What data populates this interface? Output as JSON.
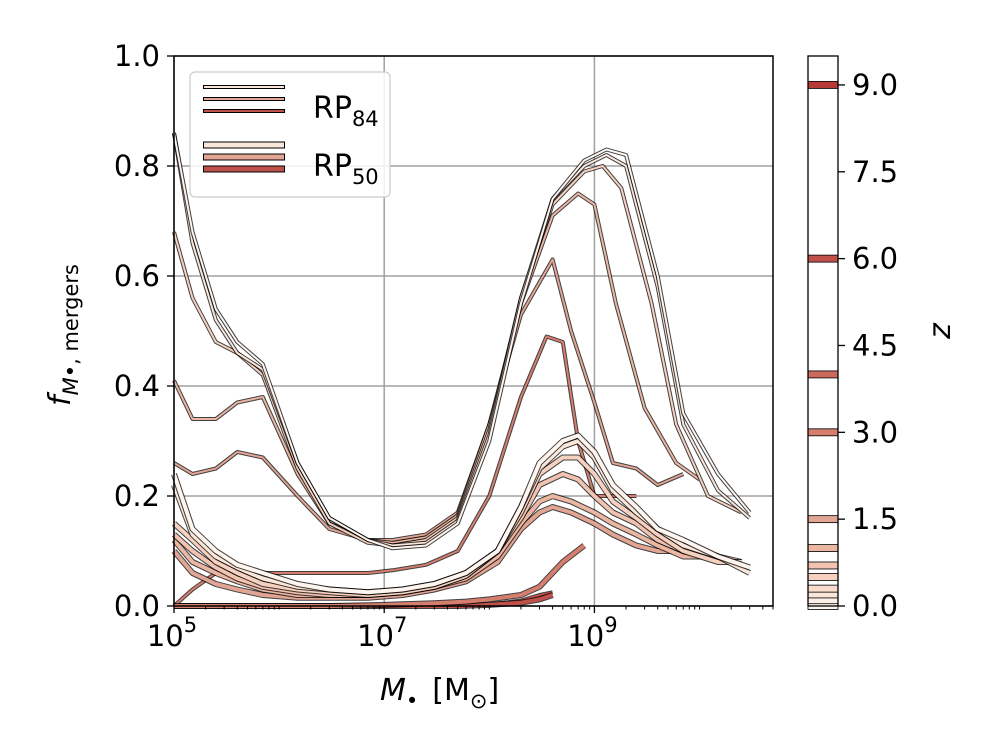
{
  "chart_data": {
    "type": "line",
    "xlabel": {
      "symbol": "M",
      "subscript": "•",
      "unit": "[M",
      "unit_sub": "⊙",
      "unit_close": "]"
    },
    "ylabel": {
      "symbol": "f",
      "sub_symbol": "M",
      "sub_bullet": "•",
      "sub_text": ", mergers"
    },
    "x_scale": "log",
    "xlim": [
      100000,
      50000000000
    ],
    "ylim": [
      0,
      1
    ],
    "grid": true,
    "x_ticks": [
      {
        "value": 100000,
        "base": "10",
        "exp": "5"
      },
      {
        "value": 10000000,
        "base": "10",
        "exp": "7"
      },
      {
        "value": 1000000000,
        "base": "10",
        "exp": "9"
      }
    ],
    "y_ticks": [
      {
        "value": 0.0,
        "label": "0.0"
      },
      {
        "value": 0.2,
        "label": "0.2"
      },
      {
        "value": 0.4,
        "label": "0.4"
      },
      {
        "value": 0.6,
        "label": "0.6"
      },
      {
        "value": 0.8,
        "label": "0.8"
      },
      {
        "value": 1.0,
        "label": "1.0"
      }
    ],
    "legend": {
      "placement": "top-left",
      "entries": [
        {
          "label": "RP",
          "sub": "84",
          "style": "thin",
          "colors": [
            "#fbe6da",
            "#e2a593",
            "#c0504a"
          ]
        },
        {
          "label": "RP",
          "sub": "50",
          "style": "thick",
          "colors": [
            "#fbe6da",
            "#e2a593",
            "#c0504a"
          ]
        }
      ]
    },
    "colorbar": {
      "label": "z",
      "range": [
        0,
        9.5
      ],
      "ticks": [
        {
          "value": 0.0,
          "label": "0.0"
        },
        {
          "value": 1.5,
          "label": "1.5"
        },
        {
          "value": 3.0,
          "label": "3.0"
        },
        {
          "value": 4.5,
          "label": "4.5"
        },
        {
          "value": 6.0,
          "label": "6.0"
        },
        {
          "value": 7.5,
          "label": "7.5"
        },
        {
          "value": 9.0,
          "label": "9.0"
        }
      ],
      "levels": [
        {
          "z": 0.0,
          "color": "#fff5ef"
        },
        {
          "z": 0.1,
          "color": "#fdeee6"
        },
        {
          "z": 0.2,
          "color": "#fbe6da"
        },
        {
          "z": 0.3,
          "color": "#f9dccd"
        },
        {
          "z": 0.5,
          "color": "#f6d1bf"
        },
        {
          "z": 0.7,
          "color": "#f1c3b0"
        },
        {
          "z": 1.0,
          "color": "#ebb6a2"
        },
        {
          "z": 1.5,
          "color": "#e2a593"
        },
        {
          "z": 3.0,
          "color": "#d57e6e"
        },
        {
          "z": 4.0,
          "color": "#cc6a5c"
        },
        {
          "z": 6.0,
          "color": "#c0504a"
        },
        {
          "z": 9.0,
          "color": "#b83a36"
        }
      ]
    },
    "series": [
      {
        "z": 0.0,
        "variant": "RP84",
        "x": [
          100000.0,
          150000.0,
          250000.0,
          400000.0,
          700000.0,
          1500000.0,
          3000000.0,
          7000000.0,
          12000000.0,
          25000000.0,
          50000000.0,
          100000000.0,
          200000000.0,
          400000000.0,
          800000000.0,
          1300000000.0,
          2000000000.0,
          4000000000.0,
          7000000000.0,
          15000000000.0,
          30000000000.0
        ],
        "y": [
          0.86,
          0.68,
          0.54,
          0.48,
          0.44,
          0.26,
          0.16,
          0.12,
          0.105,
          0.11,
          0.15,
          0.3,
          0.55,
          0.74,
          0.81,
          0.83,
          0.82,
          0.6,
          0.35,
          0.24,
          0.17
        ]
      },
      {
        "z": 0.2,
        "variant": "RP84",
        "x": [
          100000.0,
          150000.0,
          250000.0,
          400000.0,
          700000.0,
          1500000.0,
          3000000.0,
          7000000.0,
          12000000.0,
          25000000.0,
          50000000.0,
          100000000.0,
          200000000.0,
          400000000.0,
          800000000.0,
          1300000000.0,
          2000000000.0,
          4000000000.0,
          7000000000.0,
          15000000000.0,
          30000000000.0
        ],
        "y": [
          0.86,
          0.66,
          0.52,
          0.46,
          0.43,
          0.26,
          0.16,
          0.12,
          0.11,
          0.115,
          0.155,
          0.31,
          0.56,
          0.74,
          0.8,
          0.82,
          0.8,
          0.58,
          0.33,
          0.21,
          0.16
        ]
      },
      {
        "z": 0.5,
        "variant": "RP84",
        "x": [
          100000.0,
          150000.0,
          250000.0,
          400000.0,
          700000.0,
          1500000.0,
          3000000.0,
          7000000.0,
          12000000.0,
          25000000.0,
          50000000.0,
          100000000.0,
          200000000.0,
          400000000.0,
          800000000.0,
          1200000000.0,
          1800000000.0,
          3500000000.0,
          6000000000.0,
          12000000000.0,
          25000000000.0
        ],
        "y": [
          0.68,
          0.56,
          0.48,
          0.46,
          0.42,
          0.25,
          0.15,
          0.115,
          0.11,
          0.12,
          0.16,
          0.32,
          0.56,
          0.73,
          0.79,
          0.8,
          0.76,
          0.55,
          0.33,
          0.2,
          0.17
        ]
      },
      {
        "z": 1.0,
        "variant": "RP84",
        "x": [
          100000.0,
          150000.0,
          250000.0,
          400000.0,
          700000.0,
          1500000.0,
          3000000.0,
          7000000.0,
          12000000.0,
          25000000.0,
          50000000.0,
          100000000.0,
          200000000.0,
          400000000.0,
          700000000.0,
          1000000000.0,
          1600000000.0,
          3000000000.0,
          6000000000.0,
          10000000000.0
        ],
        "y": [
          0.41,
          0.34,
          0.34,
          0.37,
          0.38,
          0.24,
          0.15,
          0.12,
          0.115,
          0.125,
          0.165,
          0.33,
          0.55,
          0.71,
          0.75,
          0.73,
          0.55,
          0.36,
          0.26,
          0.23
        ]
      },
      {
        "z": 1.5,
        "variant": "RP84",
        "x": [
          100000.0,
          150000.0,
          250000.0,
          400000.0,
          700000.0,
          1500000.0,
          3000000.0,
          7000000.0,
          12000000.0,
          25000000.0,
          50000000.0,
          100000000.0,
          200000000.0,
          400000000.0,
          600000000.0,
          1000000000.0,
          1500000000.0,
          2500000000.0,
          4000000000.0,
          7000000000.0
        ],
        "y": [
          0.26,
          0.24,
          0.25,
          0.28,
          0.27,
          0.2,
          0.14,
          0.12,
          0.12,
          0.13,
          0.17,
          0.33,
          0.53,
          0.63,
          0.5,
          0.37,
          0.26,
          0.25,
          0.22,
          0.24
        ]
      },
      {
        "z": 3.0,
        "variant": "RP84",
        "x": [
          100000.0,
          150000.0,
          250000.0,
          400000.0,
          700000.0,
          1500000.0,
          3000000.0,
          7000000.0,
          12000000.0,
          25000000.0,
          50000000.0,
          100000000.0,
          200000000.0,
          350000000.0,
          500000000.0,
          700000000.0,
          1000000000.0,
          1500000000.0,
          2500000000.0
        ],
        "y": [
          0.0,
          0.03,
          0.06,
          0.06,
          0.06,
          0.06,
          0.06,
          0.06,
          0.065,
          0.075,
          0.1,
          0.2,
          0.38,
          0.49,
          0.48,
          0.3,
          0.2,
          0.2,
          0.2
        ]
      },
      {
        "z": 6.0,
        "variant": "RP84",
        "x": [
          100000.0,
          1000000.0,
          10000000.0,
          100000000.0,
          200000000.0,
          300000000.0,
          400000000.0
        ],
        "y": [
          0.0,
          0.0,
          0.0,
          0.002,
          0.01,
          0.02,
          0.025
        ]
      },
      {
        "z": 0.0,
        "variant": "RP50",
        "x": [
          100000.0,
          150000.0,
          250000.0,
          400000.0,
          700000.0,
          1500000.0,
          3000000.0,
          7000000.0,
          15000000.0,
          30000000.0,
          60000000.0,
          120000000.0,
          200000000.0,
          300000000.0,
          500000000.0,
          700000000.0,
          1000000000.0,
          1500000000.0,
          2500000000.0,
          4000000000.0,
          7000000000.0,
          15000000000.0,
          30000000000.0
        ],
        "y": [
          0.24,
          0.14,
          0.1,
          0.075,
          0.06,
          0.04,
          0.03,
          0.025,
          0.03,
          0.04,
          0.06,
          0.1,
          0.18,
          0.26,
          0.3,
          0.31,
          0.28,
          0.22,
          0.18,
          0.14,
          0.12,
          0.09,
          0.07
        ]
      },
      {
        "z": 0.2,
        "variant": "RP50",
        "x": [
          100000.0,
          150000.0,
          250000.0,
          400000.0,
          700000.0,
          1500000.0,
          3000000.0,
          7000000.0,
          15000000.0,
          30000000.0,
          60000000.0,
          120000000.0,
          200000000.0,
          300000000.0,
          500000000.0,
          700000000.0,
          1000000000.0,
          1500000000.0,
          2500000000.0,
          4000000000.0,
          7000000000.0,
          15000000000.0,
          30000000000.0
        ],
        "y": [
          0.22,
          0.13,
          0.09,
          0.07,
          0.05,
          0.035,
          0.03,
          0.025,
          0.03,
          0.04,
          0.06,
          0.1,
          0.18,
          0.25,
          0.29,
          0.3,
          0.27,
          0.21,
          0.17,
          0.14,
          0.11,
          0.09,
          0.06
        ]
      },
      {
        "z": 0.5,
        "variant": "RP50",
        "x": [
          100000.0,
          150000.0,
          250000.0,
          400000.0,
          700000.0,
          1500000.0,
          3000000.0,
          7000000.0,
          15000000.0,
          30000000.0,
          60000000.0,
          120000000.0,
          200000000.0,
          300000000.0,
          500000000.0,
          700000000.0,
          1000000000.0,
          1500000000.0,
          2500000000.0,
          4000000000.0,
          7000000000.0,
          15000000000.0,
          25000000000.0
        ],
        "y": [
          0.15,
          0.12,
          0.08,
          0.06,
          0.04,
          0.03,
          0.025,
          0.02,
          0.025,
          0.035,
          0.055,
          0.1,
          0.17,
          0.24,
          0.27,
          0.27,
          0.24,
          0.19,
          0.16,
          0.13,
          0.1,
          0.08,
          0.08
        ]
      },
      {
        "z": 0.7,
        "variant": "RP50",
        "x": [
          100000.0,
          150000.0,
          250000.0,
          400000.0,
          700000.0,
          1500000.0,
          3000000.0,
          7000000.0,
          15000000.0,
          30000000.0,
          60000000.0,
          120000000.0,
          200000000.0,
          300000000.0,
          500000000.0,
          700000000.0,
          1000000000.0,
          1500000000.0,
          2500000000.0,
          4000000000.0,
          7000000000.0,
          15000000000.0,
          25000000000.0
        ],
        "y": [
          0.13,
          0.1,
          0.07,
          0.05,
          0.035,
          0.025,
          0.02,
          0.02,
          0.025,
          0.035,
          0.055,
          0.1,
          0.16,
          0.22,
          0.24,
          0.23,
          0.2,
          0.17,
          0.15,
          0.12,
          0.1,
          0.09,
          0.08
        ]
      },
      {
        "z": 1.0,
        "variant": "RP50",
        "x": [
          100000.0,
          150000.0,
          250000.0,
          400000.0,
          700000.0,
          1500000.0,
          3000000.0,
          7000000.0,
          15000000.0,
          30000000.0,
          60000000.0,
          120000000.0,
          200000000.0,
          300000000.0,
          400000000.0,
          600000000.0,
          1000000000.0,
          1500000000.0,
          2500000000.0,
          4000000000.0,
          7000000000.0,
          15000000000.0
        ],
        "y": [
          0.12,
          0.08,
          0.06,
          0.045,
          0.03,
          0.02,
          0.02,
          0.02,
          0.025,
          0.035,
          0.05,
          0.09,
          0.15,
          0.19,
          0.2,
          0.19,
          0.17,
          0.15,
          0.13,
          0.11,
          0.09,
          0.09
        ]
      },
      {
        "z": 1.5,
        "variant": "RP50",
        "x": [
          100000.0,
          150000.0,
          250000.0,
          400000.0,
          700000.0,
          1500000.0,
          3000000.0,
          7000000.0,
          15000000.0,
          30000000.0,
          60000000.0,
          120000000.0,
          200000000.0,
          300000000.0,
          400000000.0,
          600000000.0,
          1000000000.0,
          1500000000.0,
          2500000000.0,
          4000000000.0,
          6000000000.0
        ],
        "y": [
          0.1,
          0.06,
          0.04,
          0.03,
          0.02,
          0.015,
          0.015,
          0.015,
          0.02,
          0.03,
          0.045,
          0.08,
          0.14,
          0.17,
          0.18,
          0.17,
          0.15,
          0.13,
          0.11,
          0.1,
          0.1
        ]
      },
      {
        "z": 3.0,
        "variant": "RP50",
        "x": [
          100000.0,
          150000.0,
          250000.0,
          400000.0,
          700000.0,
          1500000.0,
          3000000.0,
          10000000.0,
          30000000.0,
          60000000.0,
          100000000.0,
          200000000.0,
          300000000.0,
          500000000.0,
          800000000.0
        ],
        "y": [
          0.0,
          0.0,
          0.0,
          0.0,
          0.0,
          0.0,
          0.0,
          0.002,
          0.005,
          0.008,
          0.012,
          0.02,
          0.035,
          0.08,
          0.11
        ]
      },
      {
        "z": 6.0,
        "variant": "RP50",
        "x": [
          100000.0,
          1000000.0,
          10000000.0,
          50000000.0,
          100000000.0,
          200000000.0,
          300000000.0,
          400000000.0
        ],
        "y": [
          0.0,
          0.0,
          0.0,
          0.0,
          0.002,
          0.006,
          0.012,
          0.02
        ]
      }
    ]
  }
}
